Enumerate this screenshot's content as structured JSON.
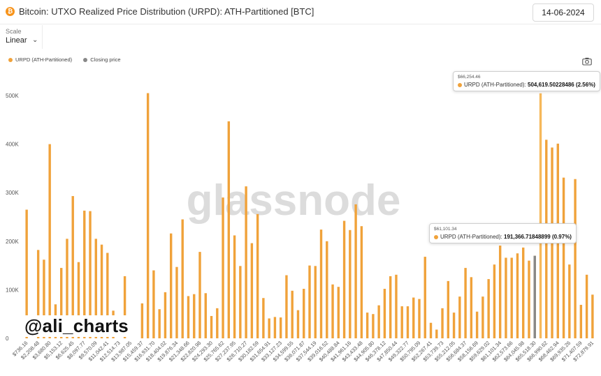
{
  "header": {
    "title": "Bitcoin: UTXO Realized Price Distribution (URPD): ATH-Partitioned [BTC]",
    "date": "14-06-2024"
  },
  "scale": {
    "label": "Scale",
    "value": "Linear"
  },
  "legend": [
    {
      "label": "URPD (ATH-Partitioned)",
      "color": "#f0a23a"
    },
    {
      "label": "Closing price",
      "color": "#888888"
    }
  ],
  "watermark": {
    "logo_text": "glassnode",
    "handle": "@ali_charts"
  },
  "tooltips": [
    {
      "price": "$66,254.46",
      "series": "URPD (ATH-Partitioned):",
      "value": "504,619.50228486 (2.56%)"
    },
    {
      "price": "$61,101.34",
      "series": "URPD (ATH-Partitioned):",
      "value": "191,366.71848899 (0.97%)"
    }
  ],
  "chart_data": {
    "type": "bar",
    "title": "Bitcoin: UTXO Realized Price Distribution (URPD): ATH-Partitioned [BTC]",
    "xlabel": "",
    "ylabel": "",
    "ylim": [
      0,
      550000
    ],
    "y_ticks": [
      0,
      100000,
      200000,
      300000,
      400000,
      500000
    ],
    "y_tick_labels": [
      "0",
      "100K",
      "200K",
      "300K",
      "400K",
      "500K"
    ],
    "grid": false,
    "legend_position": "top-left",
    "x_tick_labels": [
      "$736.16",
      "$2,208.48",
      "$3,680.80",
      "$5,153.12",
      "$6,625.45",
      "$8,097.77",
      "$9,570.09",
      "$11,042.41",
      "$12,514.73",
      "$13,987.05",
      "$15,459.37",
      "$16,931.70",
      "$18,404.02",
      "$19,876.34",
      "$21,348.66",
      "$22,820.98",
      "$24,293.30",
      "$25,765.62",
      "$27,237.95",
      "$28,710.27",
      "$30,182.59",
      "$31,654.91",
      "$33,127.23",
      "$34,599.55",
      "$36,071.87",
      "$37,544.19",
      "$39,016.52",
      "$40,488.84",
      "$41,961.16",
      "$43,433.48",
      "$44,905.80",
      "$46,378.12",
      "$47,850.44",
      "$49,322.77",
      "$50,795.09",
      "$52,267.41",
      "$53,739.73",
      "$55,212.05",
      "$56,684.37",
      "$58,156.69",
      "$59,629.02",
      "$61,101.34",
      "$62,573.66",
      "$64,045.98",
      "$65,518.30",
      "$66,990.62",
      "$68,462.94",
      "$69,935.26",
      "$71,407.59",
      "$72,879.91"
    ],
    "series": [
      {
        "name": "URPD (ATH-Partitioned)",
        "color": "#f0a23a",
        "values": [
          265000,
          0,
          182000,
          162000,
          400000,
          70000,
          145000,
          205000,
          293000,
          157000,
          263000,
          262000,
          205000,
          193000,
          176000,
          57000,
          0,
          128000,
          0,
          0,
          72000,
          505000,
          140000,
          60000,
          95000,
          216000,
          147000,
          245000,
          87000,
          91000,
          178000,
          93000,
          46000,
          62000,
          290000,
          447000,
          212000,
          149000,
          313000,
          196000,
          256000,
          83000,
          41000,
          44000,
          43000,
          130000,
          98000,
          58000,
          102000,
          150000,
          149000,
          224000,
          200000,
          111000,
          106000,
          242000,
          223000,
          276000,
          231000,
          53000,
          50000,
          68000,
          102000,
          128000,
          131000,
          66000,
          66000,
          84000,
          81000,
          168000,
          32000,
          18000,
          62000,
          118000,
          53000,
          86000,
          145000,
          126000,
          55000,
          86000,
          122000,
          152000,
          191000,
          166000,
          166000,
          175000,
          187000,
          160000,
          170000,
          504619,
          409000,
          393000,
          401000,
          331000,
          152000,
          328000,
          69000,
          131000,
          90000
        ],
        "highlight_indices": [
          89
        ]
      },
      {
        "name": "Closing price",
        "color": "#888888",
        "values_at_index": {
          "88": 170000
        }
      }
    ]
  }
}
